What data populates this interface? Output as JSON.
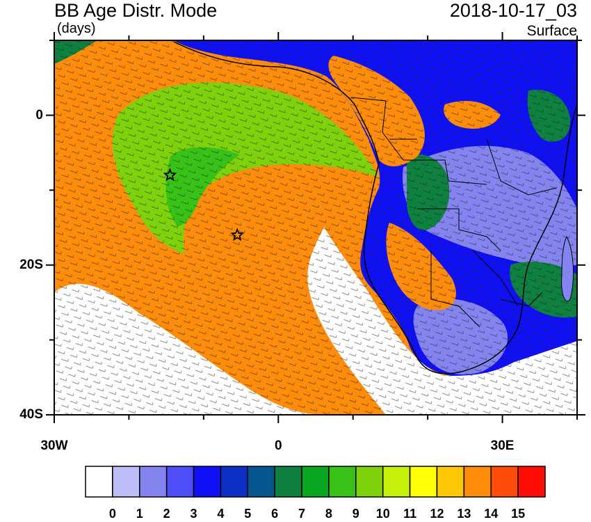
{
  "header": {
    "title": "BB Age Distr. Mode",
    "units": "(days)",
    "datetime": "2018-10-17_03",
    "level": "Surface"
  },
  "axes": {
    "lat_labels": [
      {
        "text": "0",
        "lat": 0
      },
      {
        "text": "20S",
        "lat": -20
      },
      {
        "text": "40S",
        "lat": -40
      }
    ],
    "lon_labels": [
      {
        "text": "30W",
        "lon": -30
      },
      {
        "text": "0",
        "lon": 0
      },
      {
        "text": "30E",
        "lon": 30
      }
    ],
    "lon_range": [
      -30,
      40
    ],
    "lat_range": [
      -40,
      10
    ]
  },
  "colorbar": {
    "labels": [
      "0",
      "1",
      "2",
      "3",
      "4",
      "5",
      "6",
      "7",
      "8",
      "9",
      "10",
      "11",
      "12",
      "13",
      "14",
      "15"
    ],
    "colors": [
      "#ffffff",
      "#bdbdf7",
      "#8484f0",
      "#4f4ff7",
      "#1010f7",
      "#0c2fc4",
      "#06578f",
      "#0e8040",
      "#0aa820",
      "#38c218",
      "#7ed20c",
      "#c5f00a",
      "#ffff06",
      "#ffc806",
      "#ff8c0a",
      "#ff4c0a",
      "#ff0c06"
    ]
  },
  "markers": [
    {
      "name": "star-marker",
      "lon": -14.5,
      "lat": -8
    },
    {
      "name": "star-marker",
      "lon": -5.5,
      "lat": -16
    }
  ],
  "map": {
    "ocean_color": "#ff8c0a",
    "land_colors": [
      "#1010f7",
      "#8484f0",
      "#0e8040",
      "#4f4ff7"
    ]
  }
}
